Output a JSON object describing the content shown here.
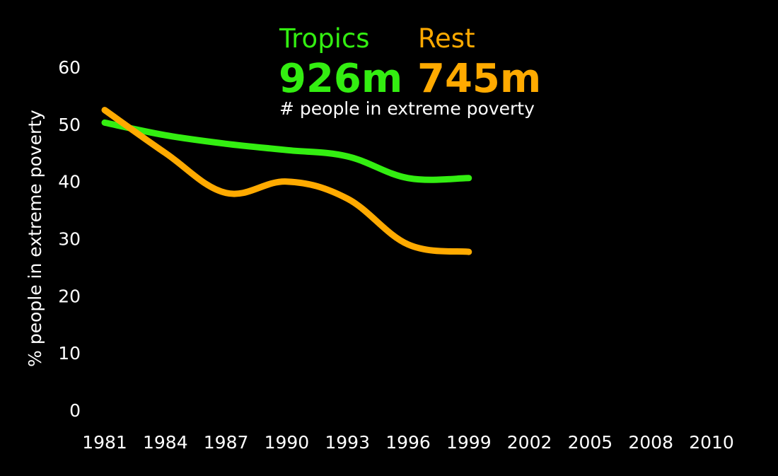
{
  "chart_data": {
    "type": "line",
    "title": "",
    "subtitle": "# people in extreme poverty",
    "xlabel": "",
    "ylabel": "% people in extreme poverty",
    "x_tick_labels": [
      "1981",
      "1984",
      "1987",
      "1990",
      "1993",
      "1996",
      "1999",
      "2002",
      "2005",
      "2008",
      "2010"
    ],
    "y_tick_labels": [
      "0",
      "10",
      "20",
      "30",
      "40",
      "50",
      "60"
    ],
    "ylim": [
      0,
      60
    ],
    "grid": false,
    "legend": "top-center",
    "series": [
      {
        "name": "Tropics",
        "count_label": "926m",
        "color": "#33ee11",
        "x": [
          "1981",
          "1984",
          "1987",
          "1990",
          "1993",
          "1996",
          "1999"
        ],
        "values": [
          50.3,
          48.1,
          46.6,
          45.5,
          44.4,
          40.6,
          40.6
        ]
      },
      {
        "name": "Rest",
        "count_label": "745m",
        "color": "#ffaa00",
        "x": [
          "1981",
          "1984",
          "1987",
          "1990",
          "1993",
          "1996",
          "1999"
        ],
        "values": [
          52.5,
          45.0,
          38.0,
          40.0,
          37.0,
          29.0,
          27.7
        ]
      }
    ]
  }
}
